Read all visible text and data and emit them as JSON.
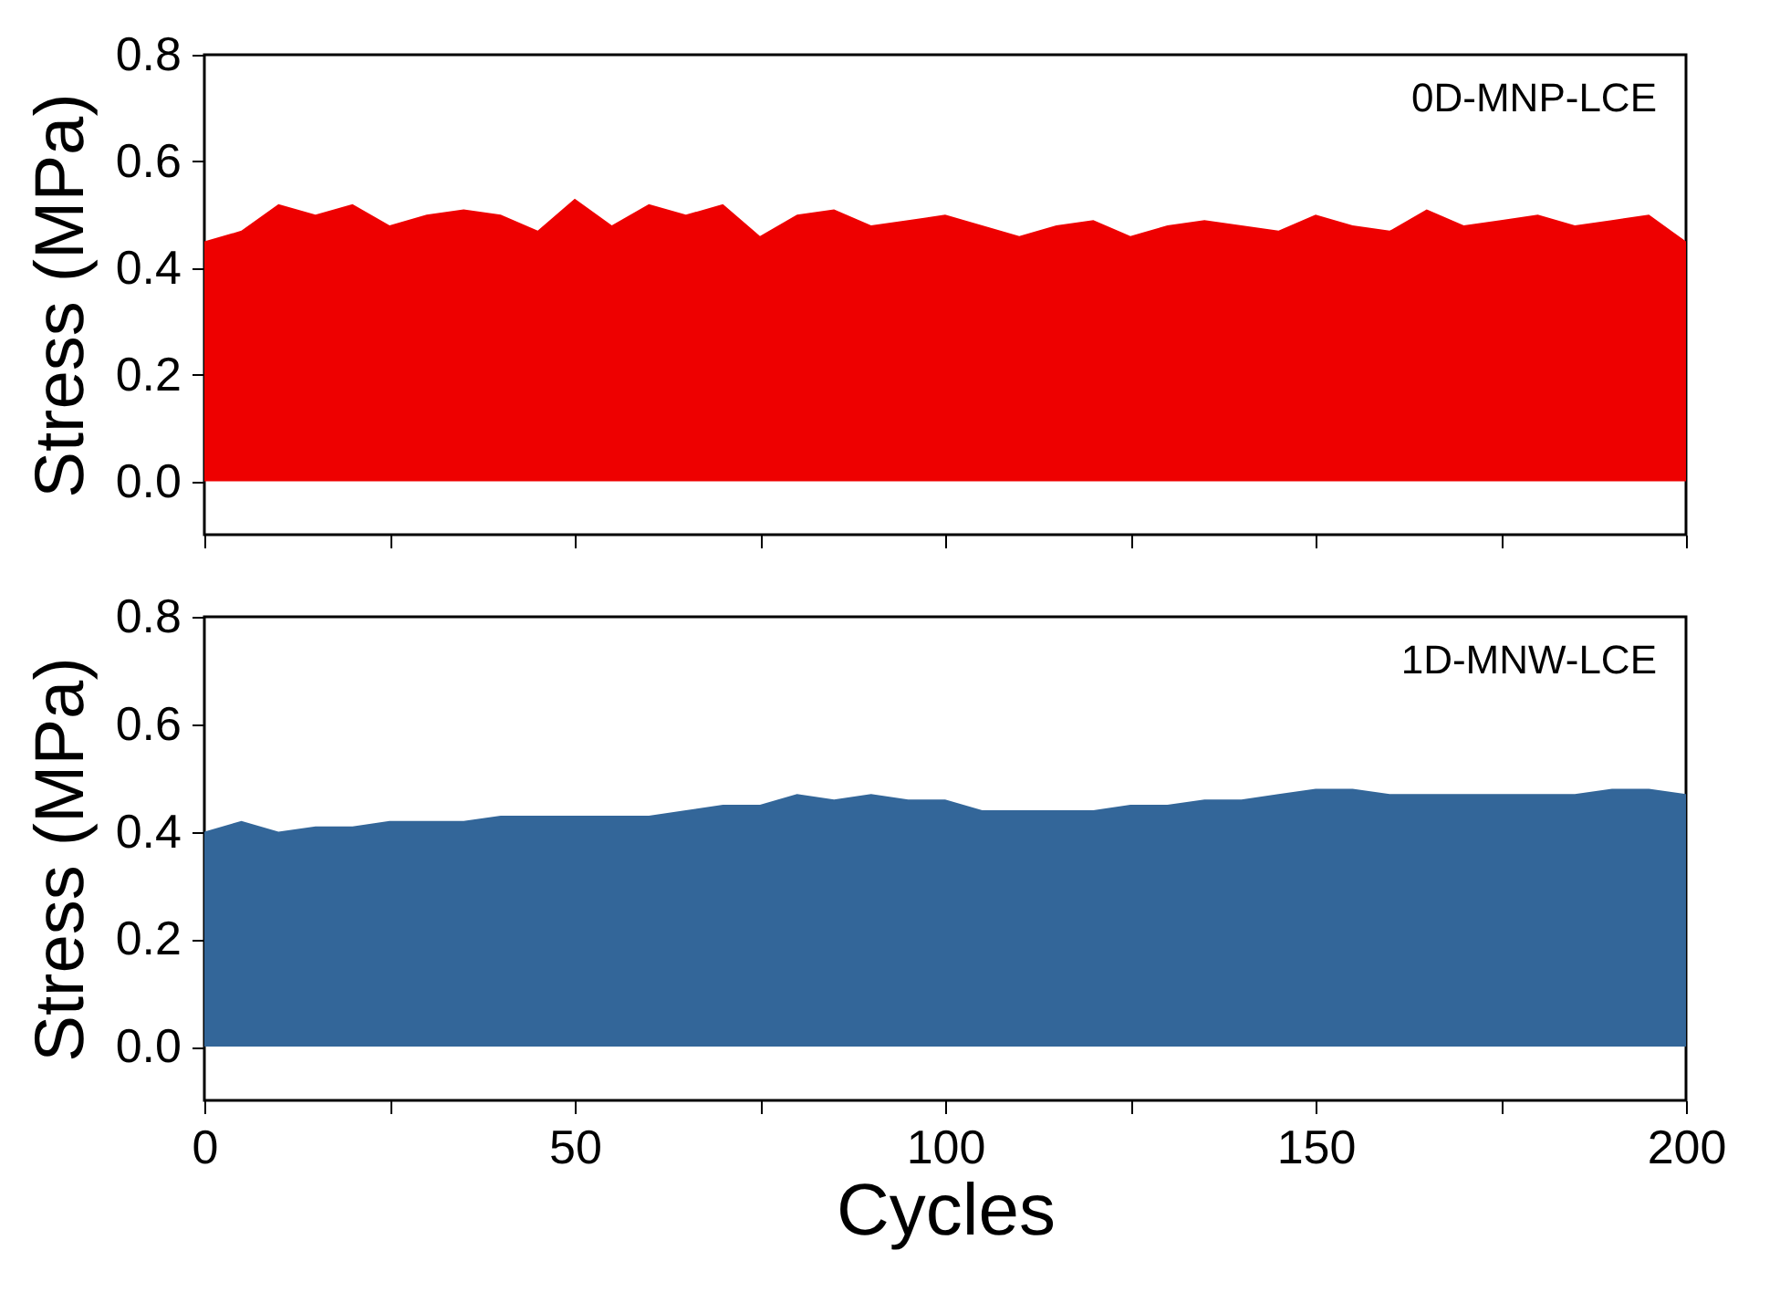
{
  "chart_data": [
    {
      "type": "area",
      "tick_labels": "y",
      "ylabel": "Stress (MPa)",
      "xlim": [
        0,
        200
      ],
      "xticks": [
        0,
        {
          "value": 25,
          "label": null
        },
        50,
        {
          "value": 75,
          "label": null
        },
        100,
        {
          "value": 125,
          "label": null
        },
        150,
        {
          "value": 175,
          "label": null
        },
        200
      ],
      "ylim": [
        -0.1,
        0.8
      ],
      "yticks": [
        {
          "value": 0,
          "label": "0.0"
        },
        0.2,
        0.4,
        0.6,
        0.8
      ],
      "grid": false,
      "x": [
        0,
        5,
        10,
        15,
        20,
        25,
        30,
        35,
        40,
        45,
        50,
        55,
        60,
        65,
        70,
        75,
        80,
        85,
        90,
        95,
        100,
        105,
        110,
        115,
        120,
        125,
        130,
        135,
        140,
        145,
        150,
        155,
        160,
        165,
        170,
        175,
        180,
        185,
        190,
        195,
        200
      ],
      "series": [
        {
          "name": "0D-MNP-LCE",
          "color": "#ee0000",
          "values": [
            0.45,
            0.47,
            0.52,
            0.5,
            0.52,
            0.48,
            0.5,
            0.51,
            0.5,
            0.47,
            0.53,
            0.48,
            0.52,
            0.5,
            0.52,
            0.46,
            0.5,
            0.51,
            0.48,
            0.49,
            0.5,
            0.48,
            0.46,
            0.48,
            0.49,
            0.46,
            0.48,
            0.49,
            0.48,
            0.47,
            0.5,
            0.48,
            0.47,
            0.51,
            0.48,
            0.49,
            0.5,
            0.48,
            0.49,
            0.5,
            0.45
          ]
        }
      ]
    },
    {
      "type": "area",
      "xlabel": "Cycles",
      "ylabel": "Stress (MPa)",
      "xlim": [
        0,
        200
      ],
      "xticks": [
        0,
        {
          "value": 25,
          "label": null
        },
        50,
        {
          "value": 75,
          "label": null
        },
        100,
        {
          "value": 125,
          "label": null
        },
        150,
        {
          "value": 175,
          "label": null
        },
        200
      ],
      "ylim": [
        -0.1,
        0.8
      ],
      "yticks": [
        {
          "value": 0,
          "label": "0.0"
        },
        0.2,
        0.4,
        0.6,
        0.8
      ],
      "grid": false,
      "x": [
        0,
        5,
        10,
        15,
        20,
        25,
        30,
        35,
        40,
        45,
        50,
        55,
        60,
        65,
        70,
        75,
        80,
        85,
        90,
        95,
        100,
        105,
        110,
        115,
        120,
        125,
        130,
        135,
        140,
        145,
        150,
        155,
        160,
        165,
        170,
        175,
        180,
        185,
        190,
        195,
        200
      ],
      "series": [
        {
          "name": "1D-MNW-LCE",
          "color": "#336699",
          "values": [
            0.4,
            0.42,
            0.4,
            0.41,
            0.41,
            0.42,
            0.42,
            0.42,
            0.43,
            0.43,
            0.43,
            0.43,
            0.43,
            0.44,
            0.45,
            0.45,
            0.47,
            0.46,
            0.47,
            0.46,
            0.46,
            0.44,
            0.44,
            0.44,
            0.44,
            0.45,
            0.45,
            0.46,
            0.46,
            0.47,
            0.48,
            0.48,
            0.47,
            0.47,
            0.47,
            0.47,
            0.47,
            0.47,
            0.48,
            0.48,
            0.47
          ]
        }
      ]
    }
  ]
}
